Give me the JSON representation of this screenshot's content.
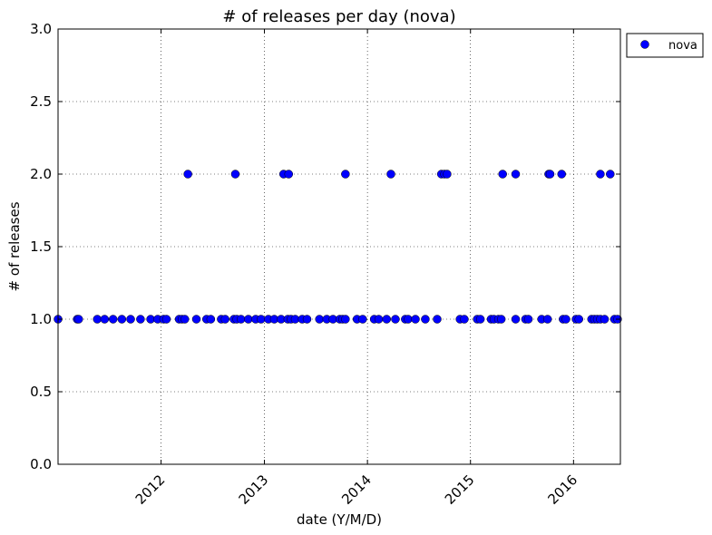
{
  "chart_data": {
    "type": "scatter",
    "title": "# of releases per day (nova)",
    "xlabel": "date (Y/M/D)",
    "ylabel": "# of releases",
    "xlim": [
      "2011-01-01",
      "2016-06-15"
    ],
    "ylim": [
      0,
      3
    ],
    "xticks": [
      {
        "label": "2012",
        "date": "2012-01-01"
      },
      {
        "label": "2013",
        "date": "2013-01-01"
      },
      {
        "label": "2014",
        "date": "2014-01-01"
      },
      {
        "label": "2015",
        "date": "2015-01-01"
      },
      {
        "label": "2016",
        "date": "2016-01-01"
      }
    ],
    "yticks": [
      "0.0",
      "0.5",
      "1.0",
      "1.5",
      "2.0",
      "2.5",
      "3.0"
    ],
    "grid": true,
    "legend_position": "outside-top-right",
    "series": [
      {
        "name": "nova",
        "color": "#0000ff",
        "points": [
          {
            "x": "2011-01-01",
            "y": 1
          },
          {
            "x": "2011-03-10",
            "y": 1
          },
          {
            "x": "2011-03-15",
            "y": 1
          },
          {
            "x": "2011-05-20",
            "y": 1
          },
          {
            "x": "2011-06-15",
            "y": 1
          },
          {
            "x": "2011-07-15",
            "y": 1
          },
          {
            "x": "2011-08-15",
            "y": 1
          },
          {
            "x": "2011-09-15",
            "y": 1
          },
          {
            "x": "2011-10-20",
            "y": 1
          },
          {
            "x": "2011-11-25",
            "y": 1
          },
          {
            "x": "2011-12-20",
            "y": 1
          },
          {
            "x": "2012-01-10",
            "y": 1
          },
          {
            "x": "2012-01-20",
            "y": 1
          },
          {
            "x": "2012-03-05",
            "y": 1
          },
          {
            "x": "2012-03-15",
            "y": 1
          },
          {
            "x": "2012-03-25",
            "y": 1
          },
          {
            "x": "2012-05-05",
            "y": 1
          },
          {
            "x": "2012-06-10",
            "y": 1
          },
          {
            "x": "2012-06-25",
            "y": 1
          },
          {
            "x": "2012-08-01",
            "y": 1
          },
          {
            "x": "2012-08-15",
            "y": 1
          },
          {
            "x": "2012-09-15",
            "y": 1
          },
          {
            "x": "2012-09-25",
            "y": 1
          },
          {
            "x": "2012-10-10",
            "y": 1
          },
          {
            "x": "2012-11-05",
            "y": 1
          },
          {
            "x": "2012-12-01",
            "y": 1
          },
          {
            "x": "2012-12-20",
            "y": 1
          },
          {
            "x": "2013-01-15",
            "y": 1
          },
          {
            "x": "2013-02-05",
            "y": 1
          },
          {
            "x": "2013-03-01",
            "y": 1
          },
          {
            "x": "2013-03-25",
            "y": 1
          },
          {
            "x": "2013-04-05",
            "y": 1
          },
          {
            "x": "2013-04-20",
            "y": 1
          },
          {
            "x": "2013-05-15",
            "y": 1
          },
          {
            "x": "2013-06-01",
            "y": 1
          },
          {
            "x": "2013-07-15",
            "y": 1
          },
          {
            "x": "2013-08-10",
            "y": 1
          },
          {
            "x": "2013-09-01",
            "y": 1
          },
          {
            "x": "2013-09-25",
            "y": 1
          },
          {
            "x": "2013-10-05",
            "y": 1
          },
          {
            "x": "2013-10-15",
            "y": 1
          },
          {
            "x": "2013-11-25",
            "y": 1
          },
          {
            "x": "2013-12-15",
            "y": 1
          },
          {
            "x": "2014-01-25",
            "y": 1
          },
          {
            "x": "2014-02-10",
            "y": 1
          },
          {
            "x": "2014-03-10",
            "y": 1
          },
          {
            "x": "2014-04-10",
            "y": 1
          },
          {
            "x": "2014-05-15",
            "y": 1
          },
          {
            "x": "2014-05-25",
            "y": 1
          },
          {
            "x": "2014-06-20",
            "y": 1
          },
          {
            "x": "2014-07-25",
            "y": 1
          },
          {
            "x": "2014-09-05",
            "y": 1
          },
          {
            "x": "2014-11-25",
            "y": 1
          },
          {
            "x": "2014-12-10",
            "y": 1
          },
          {
            "x": "2015-01-25",
            "y": 1
          },
          {
            "x": "2015-02-05",
            "y": 1
          },
          {
            "x": "2015-03-15",
            "y": 1
          },
          {
            "x": "2015-03-25",
            "y": 1
          },
          {
            "x": "2015-04-10",
            "y": 1
          },
          {
            "x": "2015-04-20",
            "y": 1
          },
          {
            "x": "2015-06-10",
            "y": 1
          },
          {
            "x": "2015-07-15",
            "y": 1
          },
          {
            "x": "2015-07-25",
            "y": 1
          },
          {
            "x": "2015-09-10",
            "y": 1
          },
          {
            "x": "2015-10-01",
            "y": 1
          },
          {
            "x": "2015-11-25",
            "y": 1
          },
          {
            "x": "2015-12-05",
            "y": 1
          },
          {
            "x": "2016-01-10",
            "y": 1
          },
          {
            "x": "2016-01-20",
            "y": 1
          },
          {
            "x": "2016-03-05",
            "y": 1
          },
          {
            "x": "2016-03-15",
            "y": 1
          },
          {
            "x": "2016-03-25",
            "y": 1
          },
          {
            "x": "2016-04-05",
            "y": 1
          },
          {
            "x": "2016-04-20",
            "y": 1
          },
          {
            "x": "2016-05-25",
            "y": 1
          },
          {
            "x": "2016-06-05",
            "y": 1
          },
          {
            "x": "2012-04-05",
            "y": 2
          },
          {
            "x": "2012-09-20",
            "y": 2
          },
          {
            "x": "2013-03-10",
            "y": 2
          },
          {
            "x": "2013-03-28",
            "y": 2
          },
          {
            "x": "2013-10-15",
            "y": 2
          },
          {
            "x": "2014-03-25",
            "y": 2
          },
          {
            "x": "2014-09-20",
            "y": 2
          },
          {
            "x": "2014-10-01",
            "y": 2
          },
          {
            "x": "2014-10-10",
            "y": 2
          },
          {
            "x": "2015-04-25",
            "y": 2
          },
          {
            "x": "2015-06-10",
            "y": 2
          },
          {
            "x": "2015-10-05",
            "y": 2
          },
          {
            "x": "2015-10-10",
            "y": 2
          },
          {
            "x": "2015-11-20",
            "y": 2
          },
          {
            "x": "2016-04-05",
            "y": 2
          },
          {
            "x": "2016-05-10",
            "y": 2
          }
        ]
      }
    ]
  }
}
